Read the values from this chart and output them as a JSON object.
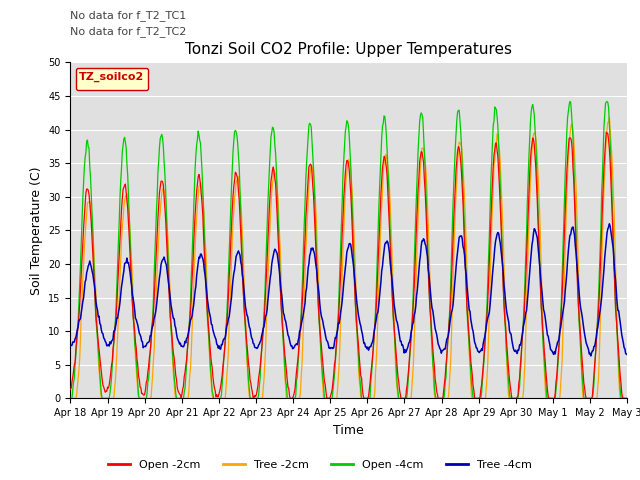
{
  "title": "Tonzi Soil CO2 Profile: Upper Temperatures",
  "ylabel": "Soil Temperature (C)",
  "xlabel": "Time",
  "annotations_line1": "No data for f_T2_TC1",
  "annotations_line2": "No data for f_T2_TC2",
  "legend_label": "TZ_soilco2",
  "legend_entries": [
    "Open -2cm",
    "Tree -2cm",
    "Open -4cm",
    "Tree -4cm"
  ],
  "legend_colors": [
    "#ff0000",
    "#ffa500",
    "#00cc00",
    "#0000bb"
  ],
  "ylim": [
    0,
    50
  ],
  "yticks": [
    0,
    5,
    10,
    15,
    20,
    25,
    30,
    35,
    40,
    45,
    50
  ],
  "xtick_labels": [
    "Apr 18",
    "Apr 19",
    "Apr 20",
    "Apr 21",
    "Apr 22",
    "Apr 23",
    "Apr 24",
    "Apr 25",
    "Apr 26",
    "Apr 27",
    "Apr 28",
    "Apr 29",
    "Apr 30",
    "May 1",
    "May 2",
    "May 3"
  ],
  "n_days": 15,
  "n_points": 720,
  "title_fontsize": 11,
  "tick_fontsize": 7,
  "axis_label_fontsize": 9,
  "annot_fontsize": 8
}
